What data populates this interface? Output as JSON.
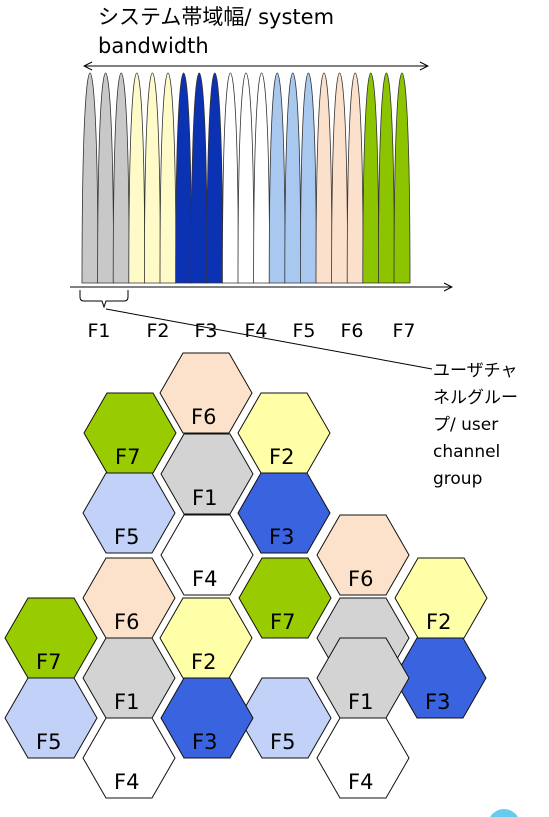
{
  "spectrum": {
    "title_line1": "システム帯域幅/ system",
    "title_line2": "bandwidth",
    "freq_labels": [
      "F1",
      "F2",
      "F3",
      "F4",
      "F5",
      "F6",
      "F7"
    ]
  },
  "callout": {
    "lines": [
      "ユーザチャ",
      "ネルグルー",
      "プ/ user",
      "channel",
      "group"
    ]
  },
  "colors": {
    "F1": "#d3d3d3",
    "F2": "#ffffa8",
    "F3": "#3a63e0",
    "F4": "#ffffff",
    "F5": "#c2d1f8",
    "F6": "#fde2cb",
    "F7": "#99cc00"
  },
  "peak_colors": {
    "F1": "#c8c8c8",
    "F2": "#fffbc8",
    "F3": "#0c32b4",
    "F4": "#ffffff",
    "F5": "#a8c8f0",
    "F6": "#fbe0cc",
    "F7": "#8cc400"
  },
  "cells": [
    {
      "label": "F6"
    },
    {
      "label": "F7"
    },
    {
      "label": "F2"
    },
    {
      "label": "F1"
    },
    {
      "label": "F5"
    },
    {
      "label": "F3"
    },
    {
      "label": "F4"
    },
    {
      "label": "F6"
    },
    {
      "label": "F6"
    },
    {
      "label": "F7"
    },
    {
      "label": "F2"
    },
    {
      "label": "F7"
    },
    {
      "label": "F2"
    },
    {
      "label": "F1"
    },
    {
      "label": "F1"
    },
    {
      "label": "F3"
    },
    {
      "label": "F5"
    },
    {
      "label": "F5"
    },
    {
      "label": "F1"
    },
    {
      "label": "F3"
    },
    {
      "label": "F4"
    },
    {
      "label": "F4"
    }
  ]
}
